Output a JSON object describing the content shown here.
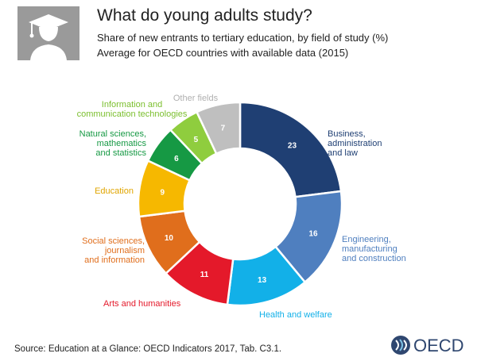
{
  "header": {
    "icon": "graduate-icon",
    "title": "What do young adults study?",
    "subtitle1": "Share of new entrants to tertiary education, by field of study (%)",
    "subtitle2": "Average for OECD countries with available data (2015)"
  },
  "chart_data": {
    "type": "pie",
    "donut": true,
    "categories": [
      "Business, administration and law",
      "Engineering, manufacturing and construction",
      "Health and welfare",
      "Arts and humanities",
      "Social sciences, journalism and information",
      "Education",
      "Natural sciences, mathematics and statistics",
      "Information and communication technologies",
      "Other fields"
    ],
    "values": [
      23,
      16,
      13,
      11,
      10,
      9,
      6,
      5,
      7
    ],
    "colors": [
      "#1f3f73",
      "#4f7fbf",
      "#12b0e8",
      "#e4192a",
      "#e06e1c",
      "#f6b800",
      "#169944",
      "#8fcd3e",
      "#bfbfbf"
    ],
    "label_colors": [
      "#1f3f73",
      "#4f7fbf",
      "#12b0e8",
      "#e4192a",
      "#e06e1c",
      "#e0a500",
      "#169944",
      "#7bbf2e",
      "#b0b0b0"
    ],
    "labels": [
      [
        "Business,",
        "administration",
        "and law"
      ],
      [
        "Engineering,",
        "manufacturing",
        "and construction"
      ],
      [
        "Health and welfare"
      ],
      [
        "Arts and humanities"
      ],
      [
        "Social sciences,",
        "journalism",
        "and information"
      ],
      [
        "Education"
      ],
      [
        "Natural sciences,",
        "mathematics",
        "and statistics"
      ],
      [
        "Information and",
        "communication technologies"
      ],
      [
        "Other fields"
      ]
    ],
    "legend": "none"
  },
  "source": "Source: Education at a Glance: OECD Indicators 2017, Tab. C3.1.",
  "logo": {
    "text": "OECD",
    "icon": "oecd-logo-icon"
  }
}
